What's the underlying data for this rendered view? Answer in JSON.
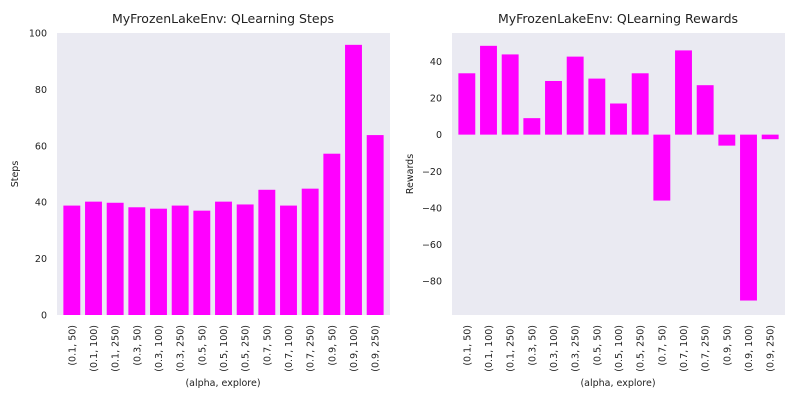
{
  "colors": {
    "background": "#ffffff",
    "plot_background": "#eaeaf2",
    "bar": "#ff00ff",
    "text": "#222222"
  },
  "chart_data": [
    {
      "type": "bar",
      "title": "MyFrozenLakeEnv: QLearning Steps",
      "xlabel": "(alpha, explore)",
      "ylabel": "Steps",
      "categories": [
        "(0.1, 50)",
        "(0.1, 100)",
        "(0.1, 250)",
        "(0.3, 50)",
        "(0.3, 100)",
        "(0.3, 250)",
        "(0.5, 50)",
        "(0.5, 100)",
        "(0.5, 250)",
        "(0.7, 50)",
        "(0.7, 100)",
        "(0.7, 250)",
        "(0.9, 50)",
        "(0.9, 100)",
        "(0.9, 250)"
      ],
      "values": [
        38.8,
        40.2,
        39.8,
        38.2,
        37.7,
        38.8,
        37.0,
        40.2,
        39.2,
        44.4,
        38.8,
        44.8,
        57.2,
        95.8,
        63.8
      ],
      "ylim": [
        0,
        100
      ],
      "yticks": [
        0,
        20,
        40,
        60,
        80,
        100
      ],
      "grid": false
    },
    {
      "type": "bar",
      "title": "MyFrozenLakeEnv: QLearning Rewards",
      "xlabel": "(alpha, explore)",
      "ylabel": "Rewards",
      "categories": [
        "(0.1, 50)",
        "(0.1, 100)",
        "(0.1, 250)",
        "(0.3, 50)",
        "(0.3, 100)",
        "(0.3, 250)",
        "(0.5, 50)",
        "(0.5, 100)",
        "(0.5, 250)",
        "(0.7, 50)",
        "(0.7, 100)",
        "(0.7, 250)",
        "(0.9, 50)",
        "(0.9, 100)",
        "(0.9, 250)"
      ],
      "values": [
        33.5,
        48.5,
        43.8,
        9.0,
        29.3,
        42.6,
        30.6,
        17.0,
        33.5,
        -36.0,
        46.0,
        27.0,
        -6.0,
        -90.6,
        -2.5
      ],
      "ylim": [
        -98.5,
        55.5
      ],
      "yticks": [
        -80,
        -60,
        -40,
        -20,
        0,
        20,
        40
      ],
      "grid": false
    }
  ]
}
